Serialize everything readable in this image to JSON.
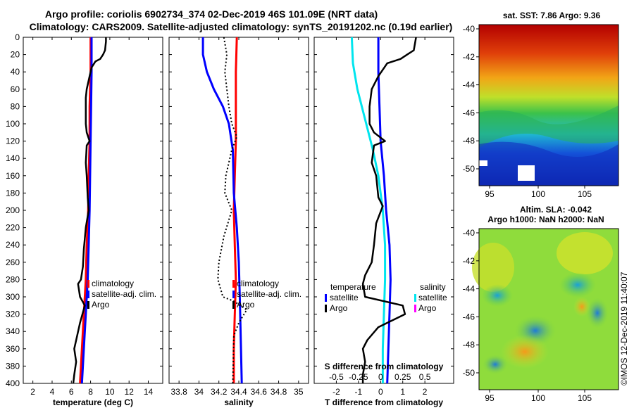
{
  "header": {
    "line1": "Argo profile: coriolis 6902734_374 02-Dec-2019 46S 101.09E (NRT data)",
    "line2": "Climatology: CARS2009. Satellite-adjusted climatology: synTS_20191202.nc (0.19d earlier)"
  },
  "colors": {
    "climatology": "#ff0000",
    "satellite": "#0000ff",
    "argo": "#000000",
    "sal_satellite": "#00e5ee",
    "sal_argo": "#ff00ff"
  },
  "chart_data": [
    {
      "type": "line",
      "id": "temperature",
      "xlabel": "temperature (deg C)",
      "ylabel": "",
      "xlim": [
        1,
        15.5
      ],
      "ylim": [
        0,
        400
      ],
      "xticks": [
        2,
        4,
        6,
        8,
        10,
        12,
        14
      ],
      "yticks": [
        0,
        20,
        40,
        60,
        80,
        100,
        120,
        140,
        160,
        180,
        200,
        220,
        240,
        260,
        280,
        300,
        320,
        340,
        360,
        380,
        400
      ],
      "legend": [
        "climatology",
        "satellite-adj. clim.",
        "Argo"
      ],
      "series": [
        {
          "name": "climatology",
          "color": "#ff0000",
          "points": [
            [
              8.0,
              0
            ],
            [
              8.0,
              40
            ],
            [
              7.9,
              80
            ],
            [
              7.9,
              120
            ],
            [
              7.8,
              160
            ],
            [
              7.75,
              200
            ],
            [
              7.6,
              240
            ],
            [
              7.5,
              280
            ],
            [
              7.3,
              320
            ],
            [
              7.1,
              360
            ],
            [
              6.9,
              400
            ]
          ]
        },
        {
          "name": "satellite-adj. clim.",
          "color": "#0000ff",
          "points": [
            [
              8.1,
              0
            ],
            [
              8.1,
              40
            ],
            [
              8.05,
              80
            ],
            [
              8.0,
              120
            ],
            [
              7.95,
              160
            ],
            [
              7.9,
              200
            ],
            [
              7.8,
              240
            ],
            [
              7.7,
              280
            ],
            [
              7.5,
              320
            ],
            [
              7.3,
              360
            ],
            [
              7.1,
              400
            ]
          ]
        },
        {
          "name": "Argo",
          "color": "#000000",
          "points": [
            [
              9.6,
              0
            ],
            [
              9.6,
              5
            ],
            [
              9.5,
              15
            ],
            [
              9.3,
              20
            ],
            [
              9.0,
              25
            ],
            [
              8.5,
              28
            ],
            [
              8.1,
              35
            ],
            [
              7.9,
              45
            ],
            [
              7.6,
              60
            ],
            [
              7.5,
              70
            ],
            [
              7.5,
              100
            ],
            [
              7.6,
              110
            ],
            [
              7.9,
              120
            ],
            [
              7.6,
              125
            ],
            [
              7.5,
              145
            ],
            [
              7.6,
              160
            ],
            [
              7.7,
              185
            ],
            [
              7.8,
              200
            ],
            [
              7.5,
              220
            ],
            [
              7.3,
              245
            ],
            [
              7.2,
              265
            ],
            [
              7.0,
              280
            ],
            [
              6.7,
              285
            ],
            [
              6.9,
              300
            ],
            [
              7.4,
              310
            ],
            [
              6.9,
              330
            ],
            [
              6.6,
              345
            ],
            [
              6.3,
              360
            ],
            [
              6.5,
              375
            ],
            [
              6.3,
              390
            ],
            [
              6.2,
              400
            ]
          ]
        }
      ]
    },
    {
      "type": "line",
      "id": "salinity",
      "xlabel": "salinity",
      "ylabel": "",
      "xlim": [
        33.7,
        35.1
      ],
      "ylim": [
        0,
        400
      ],
      "xticks": [
        33.8,
        34,
        34.2,
        34.4,
        34.6,
        34.8,
        35
      ],
      "xtick_labels": [
        "33.8",
        "34",
        "34.2",
        "34.4",
        "34.6",
        "34.8",
        "35"
      ],
      "legend": [
        "climatology",
        "satellite-adj. clim.",
        "Argo"
      ],
      "series": [
        {
          "name": "climatology",
          "color": "#ff0000",
          "points": [
            [
              34.38,
              0
            ],
            [
              34.37,
              40
            ],
            [
              34.37,
              80
            ],
            [
              34.37,
              120
            ],
            [
              34.36,
              160
            ],
            [
              34.35,
              200
            ],
            [
              34.36,
              240
            ],
            [
              34.37,
              280
            ],
            [
              34.36,
              320
            ],
            [
              34.35,
              360
            ],
            [
              34.35,
              400
            ]
          ]
        },
        {
          "name": "satellite-adj. clim.",
          "color": "#0000ff",
          "points": [
            [
              34.04,
              0
            ],
            [
              34.04,
              20
            ],
            [
              34.08,
              40
            ],
            [
              34.15,
              60
            ],
            [
              34.24,
              80
            ],
            [
              34.3,
              100
            ],
            [
              34.34,
              130
            ],
            [
              34.35,
              180
            ],
            [
              34.38,
              220
            ],
            [
              34.4,
              260
            ],
            [
              34.41,
              300
            ],
            [
              34.42,
              350
            ],
            [
              34.43,
              400
            ]
          ]
        },
        {
          "name": "Argo",
          "color": "#000000",
          "points": [
            [
              34.25,
              0
            ],
            [
              34.28,
              20
            ],
            [
              34.26,
              40
            ],
            [
              34.3,
              80
            ],
            [
              34.33,
              100
            ],
            [
              34.38,
              115
            ],
            [
              34.33,
              130
            ],
            [
              34.27,
              160
            ],
            [
              34.26,
              180
            ],
            [
              34.33,
              200
            ],
            [
              34.25,
              230
            ],
            [
              34.2,
              260
            ],
            [
              34.19,
              280
            ],
            [
              34.24,
              300
            ],
            [
              34.35,
              305
            ],
            [
              34.48,
              315
            ],
            [
              34.4,
              330
            ],
            [
              34.35,
              345
            ],
            [
              34.34,
              400
            ]
          ]
        }
      ]
    },
    {
      "type": "line",
      "id": "difference",
      "xlabel": "T difference from climatology",
      "xlabel_top": "S difference from climatology",
      "xlim": [
        -3,
        3.3
      ],
      "ylim": [
        0,
        400
      ],
      "xticks": [
        -2,
        -1,
        0,
        1,
        2
      ],
      "xticks_s": [
        -0.5,
        -0.25,
        0,
        0.25,
        0.5
      ],
      "xtick_labels_s": [
        "-0.5",
        "-0.25",
        "0",
        "0.25",
        "0.5"
      ],
      "legend_temperature_title": "temperature",
      "legend_salinity_title": "salinity",
      "legend": [
        "satellite",
        "Argo"
      ],
      "series": [
        {
          "name": "T satellite",
          "color": "#0000ff",
          "points": [
            [
              -0.1,
              0
            ],
            [
              -0.1,
              40
            ],
            [
              -0.05,
              80
            ],
            [
              0.0,
              120
            ],
            [
              0.15,
              160
            ],
            [
              0.25,
              200
            ],
            [
              0.4,
              240
            ],
            [
              0.45,
              280
            ],
            [
              0.4,
              320
            ],
            [
              0.35,
              360
            ],
            [
              0.3,
              400
            ]
          ]
        },
        {
          "name": "S satellite",
          "color": "#00e5ee",
          "points": [
            [
              -1.3,
              0
            ],
            [
              -1.25,
              30
            ],
            [
              -1.05,
              60
            ],
            [
              -0.85,
              80
            ],
            [
              -0.65,
              100
            ],
            [
              -0.35,
              130
            ],
            [
              -0.1,
              160
            ],
            [
              0.1,
              200
            ],
            [
              0.2,
              240
            ],
            [
              0.2,
              280
            ],
            [
              0.15,
              320
            ],
            [
              0.1,
              360
            ],
            [
              0.1,
              400
            ]
          ]
        },
        {
          "name": "T Argo",
          "color": "#000000",
          "points": [
            [
              1.6,
              0
            ],
            [
              1.5,
              15
            ],
            [
              1.2,
              20
            ],
            [
              0.9,
              25
            ],
            [
              0.3,
              30
            ],
            [
              -0.1,
              45
            ],
            [
              -0.4,
              60
            ],
            [
              -0.5,
              80
            ],
            [
              -0.5,
              100
            ],
            [
              -0.3,
              110
            ],
            [
              0.2,
              120
            ],
            [
              -0.3,
              125
            ],
            [
              -0.4,
              145
            ],
            [
              -0.2,
              160
            ],
            [
              -0.1,
              185
            ],
            [
              0.1,
              195
            ],
            [
              -0.2,
              215
            ],
            [
              -0.3,
              240
            ],
            [
              -0.4,
              260
            ],
            [
              -0.7,
              275
            ],
            [
              -0.8,
              285
            ],
            [
              -0.7,
              300
            ],
            [
              1.0,
              310
            ],
            [
              1.1,
              320
            ],
            [
              -0.1,
              335
            ],
            [
              -0.6,
              350
            ],
            [
              -0.8,
              360
            ],
            [
              -0.7,
              375
            ],
            [
              -0.8,
              390
            ],
            [
              -0.8,
              400
            ]
          ]
        }
      ]
    }
  ],
  "maps": {
    "top": {
      "title": "sat. SST: 7.86 Argo: 9.36",
      "yticks": [
        "-40",
        "-42",
        "-44",
        "-46",
        "-48",
        "-50"
      ],
      "xticks": [
        "95",
        "100",
        "105"
      ]
    },
    "bottom": {
      "title1": "Altim. SLA: -0.042",
      "title2": "Argo h1000: NaN h2000: NaN",
      "yticks": [
        "-40",
        "-42",
        "-44",
        "-46",
        "-48",
        "-50"
      ],
      "xticks": [
        "95",
        "100",
        "105"
      ]
    }
  },
  "footer": {
    "credit": "©IMOS 12-Dec-2019 11:40:07"
  }
}
